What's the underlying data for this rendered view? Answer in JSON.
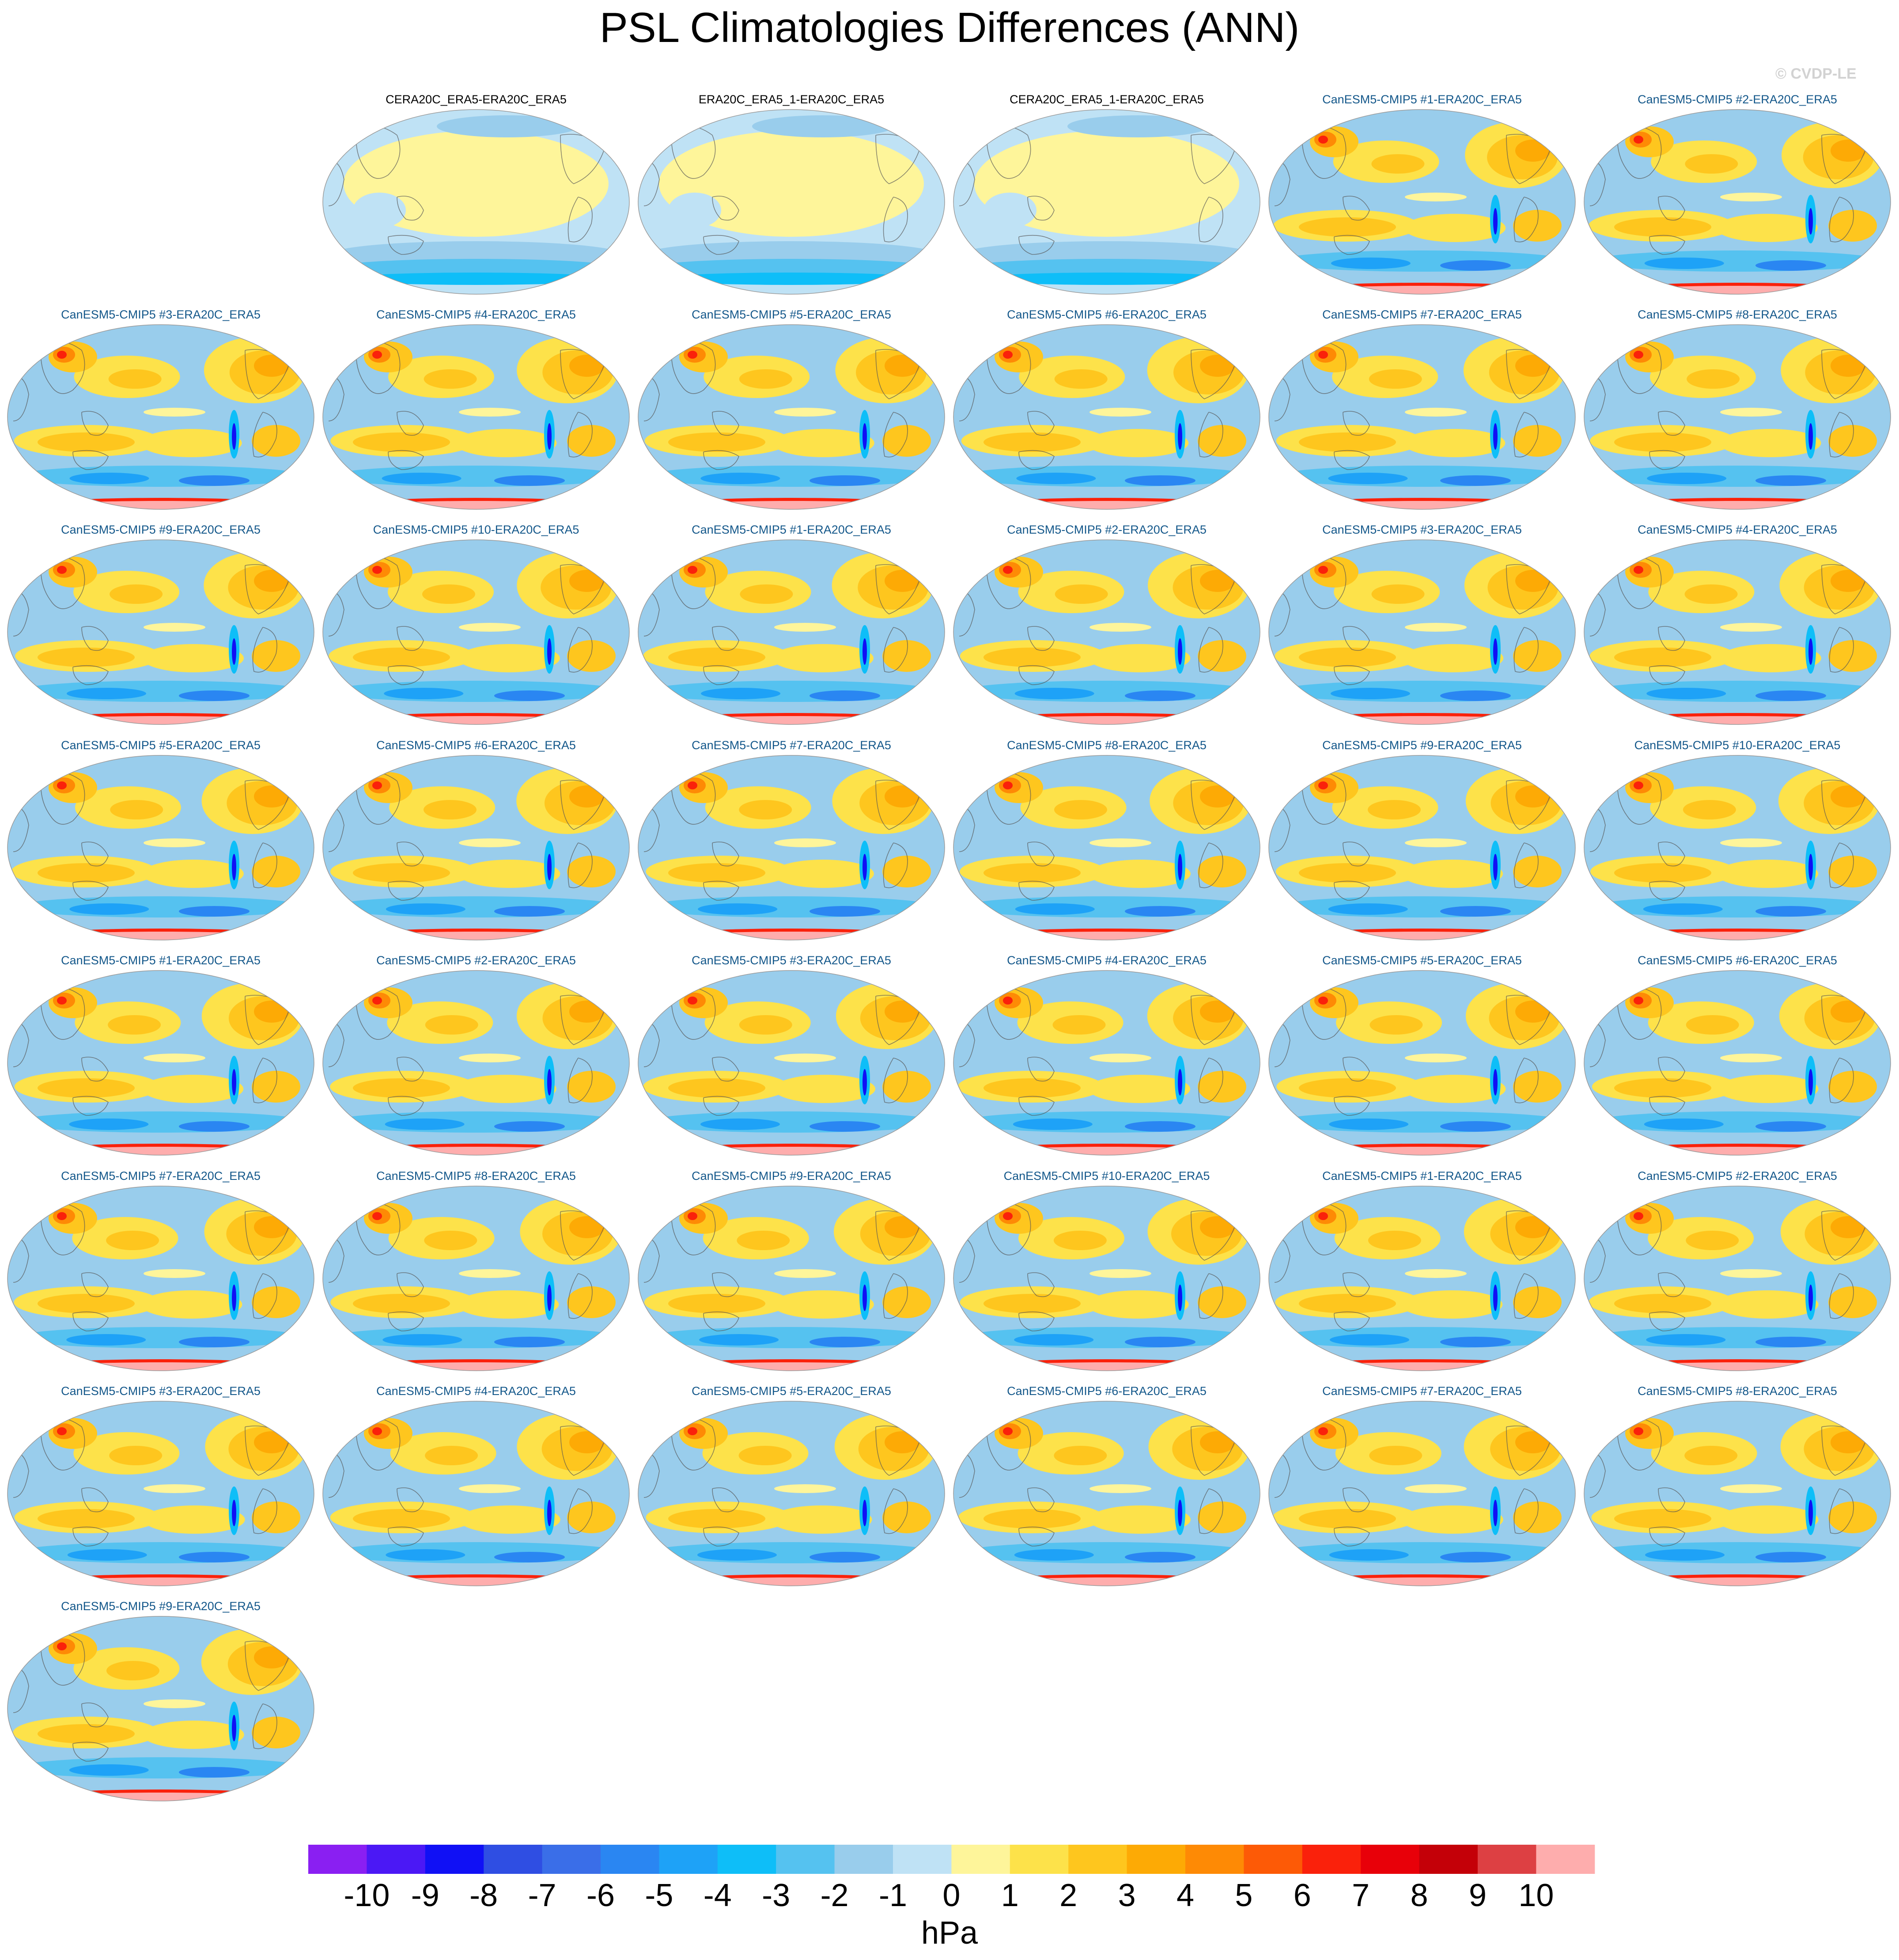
{
  "page": {
    "title": "PSL Climatologies Differences (ANN)",
    "watermark": "© CVDP-LE"
  },
  "chart_data": {
    "type": "heatmap",
    "projection": "Robinson (Pacific-centered) global map",
    "variable": "PSL",
    "season": "ANN",
    "panels": [
      {
        "title": "CERA20C_ERA5-ERA20C_ERA5",
        "kind": "obs"
      },
      {
        "title": "ERA20C_ERA5_1-ERA20C_ERA5",
        "kind": "obs"
      },
      {
        "title": "CERA20C_ERA5_1-ERA20C_ERA5",
        "kind": "obs"
      },
      {
        "title": "CanESM5-CMIP5 #1-ERA20C_ERA5",
        "kind": "model"
      },
      {
        "title": "CanESM5-CMIP5 #2-ERA20C_ERA5",
        "kind": "model"
      },
      {
        "title": "CanESM5-CMIP5 #3-ERA20C_ERA5",
        "kind": "model"
      },
      {
        "title": "CanESM5-CMIP5 #4-ERA20C_ERA5",
        "kind": "model"
      },
      {
        "title": "CanESM5-CMIP5 #5-ERA20C_ERA5",
        "kind": "model"
      },
      {
        "title": "CanESM5-CMIP5 #6-ERA20C_ERA5",
        "kind": "model"
      },
      {
        "title": "CanESM5-CMIP5 #7-ERA20C_ERA5",
        "kind": "model"
      },
      {
        "title": "CanESM5-CMIP5 #8-ERA20C_ERA5",
        "kind": "model"
      },
      {
        "title": "CanESM5-CMIP5 #9-ERA20C_ERA5",
        "kind": "model"
      },
      {
        "title": "CanESM5-CMIP5 #10-ERA20C_ERA5",
        "kind": "model"
      },
      {
        "title": "CanESM5-CMIP5 #1-ERA20C_ERA5",
        "kind": "model"
      },
      {
        "title": "CanESM5-CMIP5 #2-ERA20C_ERA5",
        "kind": "model"
      },
      {
        "title": "CanESM5-CMIP5 #3-ERA20C_ERA5",
        "kind": "model"
      },
      {
        "title": "CanESM5-CMIP5 #4-ERA20C_ERA5",
        "kind": "model"
      },
      {
        "title": "CanESM5-CMIP5 #5-ERA20C_ERA5",
        "kind": "model"
      },
      {
        "title": "CanESM5-CMIP5 #6-ERA20C_ERA5",
        "kind": "model"
      },
      {
        "title": "CanESM5-CMIP5 #7-ERA20C_ERA5",
        "kind": "model"
      },
      {
        "title": "CanESM5-CMIP5 #8-ERA20C_ERA5",
        "kind": "model"
      },
      {
        "title": "CanESM5-CMIP5 #9-ERA20C_ERA5",
        "kind": "model"
      },
      {
        "title": "CanESM5-CMIP5 #10-ERA20C_ERA5",
        "kind": "model"
      },
      {
        "title": "CanESM5-CMIP5 #1-ERA20C_ERA5",
        "kind": "model"
      },
      {
        "title": "CanESM5-CMIP5 #2-ERA20C_ERA5",
        "kind": "model"
      },
      {
        "title": "CanESM5-CMIP5 #3-ERA20C_ERA5",
        "kind": "model"
      },
      {
        "title": "CanESM5-CMIP5 #4-ERA20C_ERA5",
        "kind": "model"
      },
      {
        "title": "CanESM5-CMIP5 #5-ERA20C_ERA5",
        "kind": "model"
      },
      {
        "title": "CanESM5-CMIP5 #6-ERA20C_ERA5",
        "kind": "model"
      },
      {
        "title": "CanESM5-CMIP5 #7-ERA20C_ERA5",
        "kind": "model"
      },
      {
        "title": "CanESM5-CMIP5 #8-ERA20C_ERA5",
        "kind": "model"
      },
      {
        "title": "CanESM5-CMIP5 #9-ERA20C_ERA5",
        "kind": "model"
      },
      {
        "title": "CanESM5-CMIP5 #10-ERA20C_ERA5",
        "kind": "model"
      },
      {
        "title": "CanESM5-CMIP5 #1-ERA20C_ERA5",
        "kind": "model"
      },
      {
        "title": "CanESM5-CMIP5 #2-ERA20C_ERA5",
        "kind": "model"
      },
      {
        "title": "CanESM5-CMIP5 #3-ERA20C_ERA5",
        "kind": "model"
      },
      {
        "title": "CanESM5-CMIP5 #4-ERA20C_ERA5",
        "kind": "model"
      },
      {
        "title": "CanESM5-CMIP5 #5-ERA20C_ERA5",
        "kind": "model"
      },
      {
        "title": "CanESM5-CMIP5 #6-ERA20C_ERA5",
        "kind": "model"
      },
      {
        "title": "CanESM5-CMIP5 #7-ERA20C_ERA5",
        "kind": "model"
      },
      {
        "title": "CanESM5-CMIP5 #8-ERA20C_ERA5",
        "kind": "model"
      },
      {
        "title": "CanESM5-CMIP5 #9-ERA20C_ERA5",
        "kind": "model"
      }
    ],
    "colorbar": {
      "unit": "hPa",
      "levels": [
        -10,
        -9,
        -8,
        -7,
        -6,
        -5,
        -4,
        -3,
        -2,
        -1,
        0,
        1,
        2,
        3,
        4,
        5,
        6,
        7,
        8,
        9,
        10
      ],
      "colors": [
        "#8a1ff2",
        "#4b18f5",
        "#1010f5",
        "#2f4ee3",
        "#3a6ee8",
        "#2a86f2",
        "#1ea2f7",
        "#0ebef8",
        "#55c2f0",
        "#99cdec",
        "#bfe2f5",
        "#fef59a",
        "#fde24a",
        "#fec61e",
        "#fdaa05",
        "#fe8a05",
        "#fd5a06",
        "#fa210b",
        "#e80009",
        "#c40008",
        "#dd4043",
        "#feadad"
      ]
    }
  }
}
